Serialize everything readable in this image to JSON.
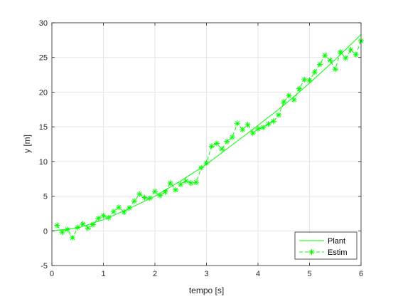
{
  "chart_data": {
    "type": "line",
    "title": "",
    "xlabel": "tempo [s]",
    "ylabel": "y [m]",
    "xlim": [
      0,
      6
    ],
    "ylim": [
      -5,
      30
    ],
    "xticks": [
      0,
      1,
      2,
      3,
      4,
      5,
      6
    ],
    "yticks": [
      -5,
      0,
      5,
      10,
      15,
      20,
      25,
      30
    ],
    "grid": true,
    "legend_position": "bottom-right",
    "colors": {
      "series": "#00ff00",
      "grid": "#e6e6e6",
      "axis": "#262626"
    },
    "series": [
      {
        "name": "Plant",
        "style": "solid-line",
        "x": [
          0,
          0.5,
          1,
          1.5,
          2,
          2.5,
          3,
          3.5,
          4,
          4.5,
          5,
          5.5,
          6
        ],
        "y": [
          0,
          0.4,
          1.6,
          3.2,
          5.0,
          7.2,
          9.6,
          12.4,
          15.2,
          18.1,
          21.3,
          24.7,
          28.3
        ]
      },
      {
        "name": "Estim",
        "style": "dashed-asterisk",
        "x": [
          0.1,
          0.2,
          0.3,
          0.4,
          0.5,
          0.6,
          0.7,
          0.8,
          0.9,
          1.0,
          1.1,
          1.2,
          1.3,
          1.4,
          1.5,
          1.6,
          1.7,
          1.8,
          1.9,
          2.0,
          2.1,
          2.2,
          2.3,
          2.4,
          2.5,
          2.6,
          2.7,
          2.8,
          2.9,
          3.0,
          3.1,
          3.2,
          3.3,
          3.4,
          3.5,
          3.6,
          3.7,
          3.8,
          3.9,
          4.0,
          4.1,
          4.2,
          4.3,
          4.4,
          4.5,
          4.6,
          4.7,
          4.8,
          4.9,
          5.0,
          5.1,
          5.2,
          5.3,
          5.4,
          5.5,
          5.6,
          5.7,
          5.8,
          5.9,
          6.0
        ],
        "y": [
          0.8,
          -0.2,
          0.2,
          -1.0,
          0.5,
          1.0,
          0.4,
          0.9,
          1.8,
          2.2,
          1.9,
          2.8,
          3.4,
          2.7,
          3.3,
          4.3,
          5.3,
          4.8,
          4.7,
          5.7,
          5.1,
          5.6,
          6.9,
          5.9,
          6.7,
          7.2,
          6.9,
          7.0,
          9.1,
          9.8,
          12.2,
          12.6,
          11.8,
          12.9,
          13.5,
          15.5,
          14.6,
          15.3,
          14.1,
          14.7,
          14.9,
          15.4,
          15.8,
          16.7,
          18.6,
          19.5,
          18.9,
          20.5,
          21.8,
          21.7,
          22.9,
          24.0,
          25.3,
          24.6,
          23.3,
          25.8,
          24.9,
          26.1,
          25.4,
          27.4
        ]
      }
    ]
  }
}
